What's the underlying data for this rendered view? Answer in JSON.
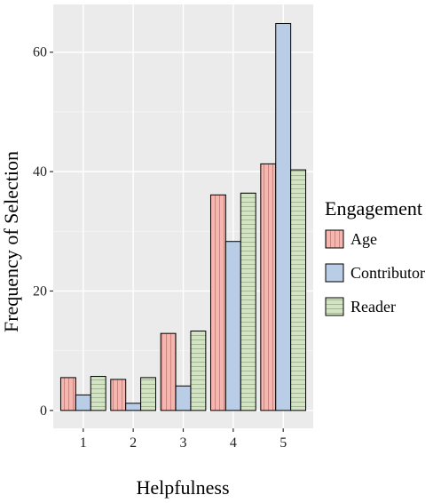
{
  "chart_data": {
    "type": "bar",
    "xlabel": "Helpfulness",
    "ylabel": "Frequency of Selection",
    "categories": [
      "1",
      "2",
      "3",
      "4",
      "5"
    ],
    "ylim": [
      -3,
      68
    ],
    "yticks": [
      0,
      20,
      40,
      60
    ],
    "grid": true,
    "legend_position": "right",
    "legend_title": "Engagement",
    "series": [
      {
        "name": "Age",
        "values": [
          5.5,
          5.2,
          12.9,
          36.1,
          41.3
        ],
        "color": "#f4b6ae",
        "pattern": "vertical-stripes"
      },
      {
        "name": "Contributor",
        "values": [
          2.6,
          1.2,
          4.1,
          28.3,
          64.8
        ],
        "color": "#b9cde6",
        "pattern": "solid"
      },
      {
        "name": "Reader",
        "values": [
          5.7,
          5.5,
          13.3,
          36.4,
          40.3
        ],
        "color": "#d3e4c4",
        "pattern": "horizontal-stripes"
      }
    ]
  }
}
